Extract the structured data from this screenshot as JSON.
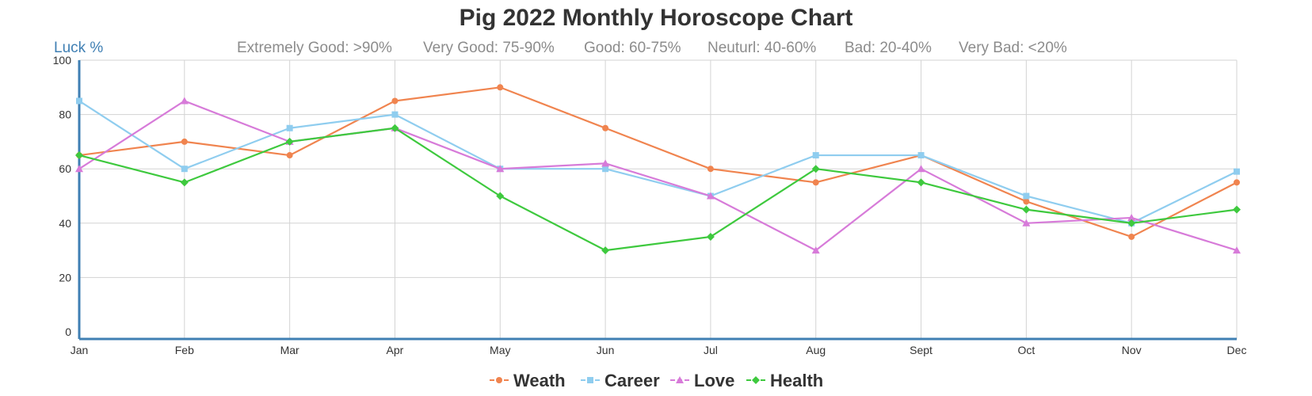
{
  "chart_data": {
    "type": "line",
    "title": "Pig 2022 Monthly Horoscope Chart",
    "ylabel": "Luck %",
    "xlabel": "",
    "ylim": [
      0,
      100
    ],
    "yticks": [
      0,
      20,
      40,
      60,
      80,
      100
    ],
    "grid": true,
    "legend_position": "bottom",
    "bands": [
      "Extremely Good: >90%",
      "Very Good: 75-90%",
      "Good: 60-75%",
      "Neuturl: 40-60%",
      "Bad: 20-40%",
      "Very Bad: <20%"
    ],
    "categories": [
      "Jan",
      "Feb",
      "Mar",
      "Apr",
      "May",
      "Jun",
      "Jul",
      "Aug",
      "Sept",
      "Oct",
      "Nov",
      "Dec"
    ],
    "series": [
      {
        "name": "Weath",
        "color": "#f0844f",
        "marker": "circle",
        "values": [
          65,
          70,
          65,
          85,
          90,
          75,
          60,
          55,
          65,
          48,
          35,
          55
        ]
      },
      {
        "name": "Career",
        "color": "#8fcdef",
        "marker": "square",
        "values": [
          85,
          60,
          75,
          80,
          60,
          60,
          50,
          65,
          65,
          50,
          40,
          59
        ]
      },
      {
        "name": "Love",
        "color": "#d77bd9",
        "marker": "triangle",
        "values": [
          60,
          85,
          70,
          75,
          60,
          62,
          50,
          30,
          60,
          40,
          42,
          30
        ]
      },
      {
        "name": "Health",
        "color": "#3ec93e",
        "marker": "diamond",
        "values": [
          65,
          55,
          70,
          75,
          50,
          30,
          35,
          60,
          55,
          45,
          40,
          45
        ]
      }
    ]
  }
}
